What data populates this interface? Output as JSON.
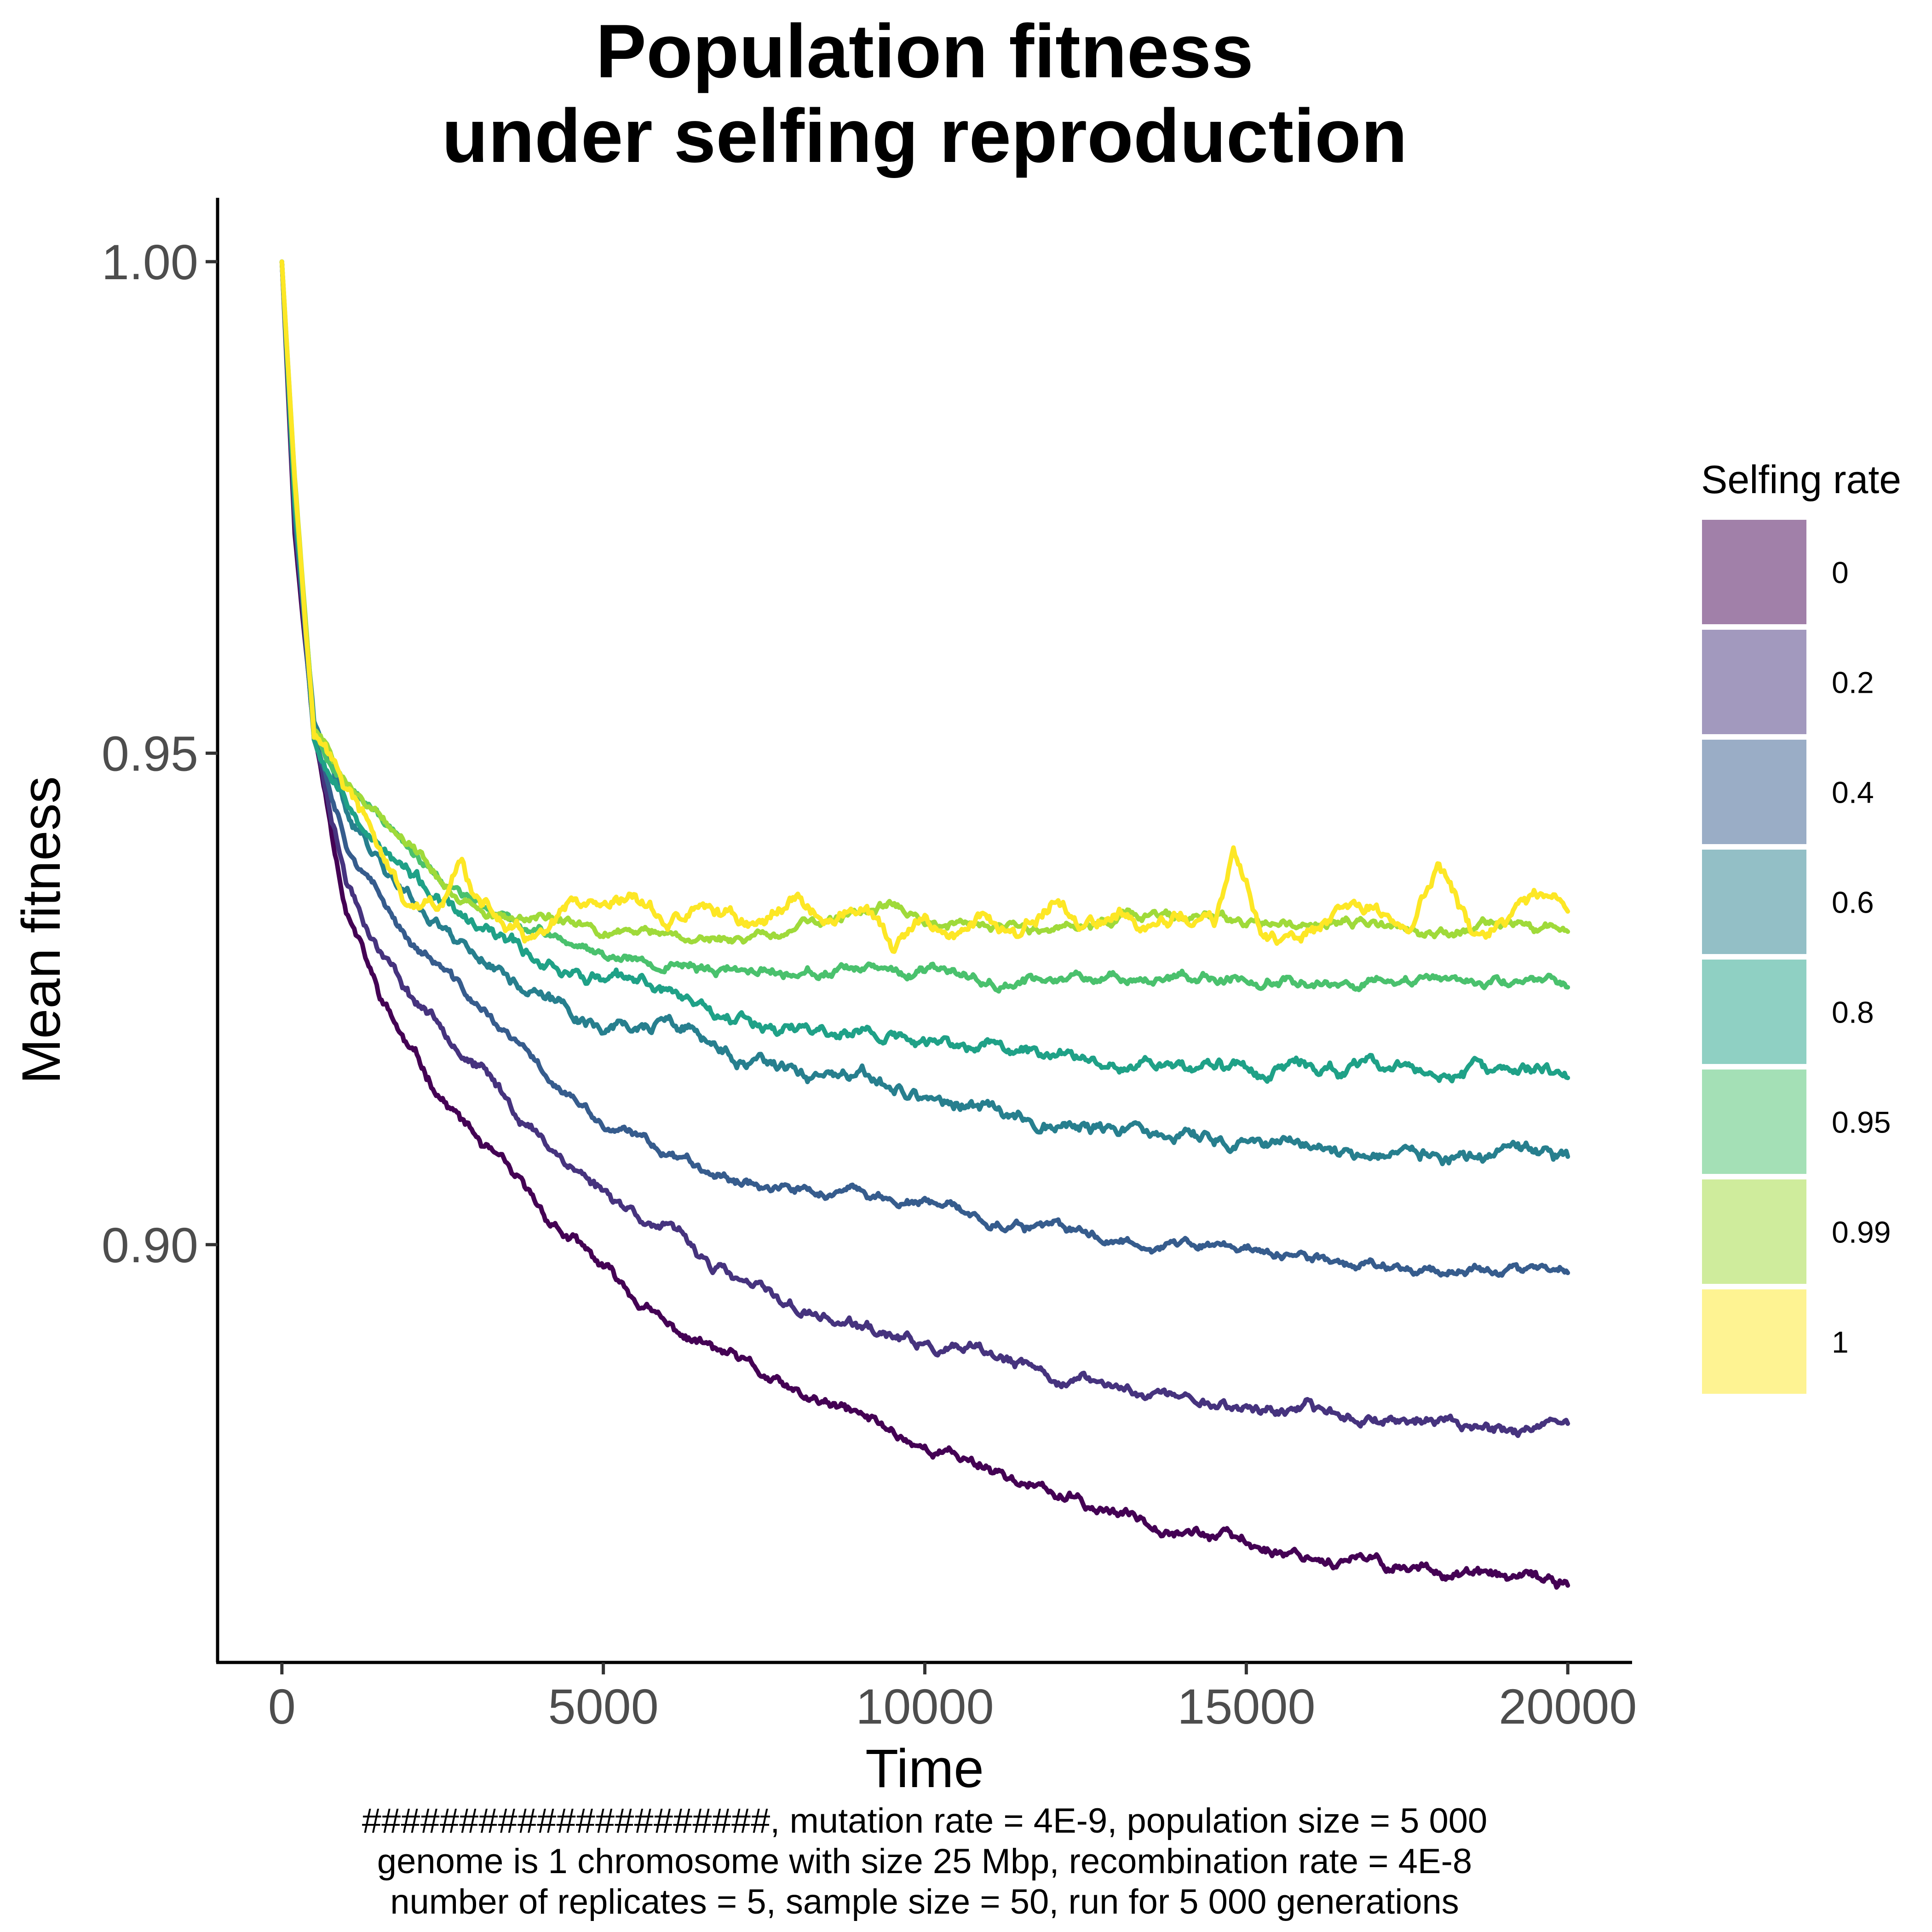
{
  "chart_data": {
    "type": "line",
    "title": [
      "Population fitness",
      "under selfing reproduction"
    ],
    "xlabel": "Time",
    "ylabel": "Mean fitness",
    "xlim": [
      -1000,
      21000
    ],
    "ylim": [
      0.8575,
      1.0065
    ],
    "x_ticks": [
      {
        "value": 0,
        "label": "0"
      },
      {
        "value": 5000,
        "label": "5000"
      },
      {
        "value": 10000,
        "label": "10000"
      },
      {
        "value": 15000,
        "label": "15000"
      },
      {
        "value": 20000,
        "label": "20000"
      }
    ],
    "y_ticks": [
      {
        "value": 0.9,
        "label": "0.90"
      },
      {
        "value": 0.95,
        "label": "0.95"
      },
      {
        "value": 1.0,
        "label": "1.00"
      }
    ],
    "grid": false,
    "legend": {
      "title": "Selfing rate",
      "position": "right",
      "entries": [
        {
          "label": "0",
          "color": "#440154"
        },
        {
          "label": "0.2",
          "color": "#46337E"
        },
        {
          "label": "0.4",
          "color": "#365C8D"
        },
        {
          "label": "0.6",
          "color": "#277F8E"
        },
        {
          "label": "0.8",
          "color": "#1FA187"
        },
        {
          "label": "0.95",
          "color": "#4AC16D"
        },
        {
          "label": "0.99",
          "color": "#9FDA3A"
        },
        {
          "label": "1",
          "color": "#FDE725"
        }
      ]
    },
    "series": [
      {
        "name": "0",
        "color": "#440154",
        "noise": 0.00035,
        "seed": 11,
        "x": [
          0,
          200,
          500,
          1000,
          1500,
          2000,
          2500,
          3000,
          4000,
          5000,
          6000,
          7000,
          8000,
          9000,
          10000,
          11000,
          12000,
          13000,
          14000,
          15000,
          16000,
          17000,
          18000,
          19000,
          20000
        ],
        "y": [
          1.0,
          0.9725,
          0.952,
          0.9345,
          0.9255,
          0.9195,
          0.915,
          0.911,
          0.9035,
          0.8975,
          0.8915,
          0.8885,
          0.8845,
          0.8825,
          0.8795,
          0.8775,
          0.8745,
          0.8725,
          0.8715,
          0.8695,
          0.8685,
          0.8675,
          0.867,
          0.866,
          0.8655
        ]
      },
      {
        "name": "0.2",
        "color": "#46337E",
        "noise": 0.00035,
        "seed": 23,
        "x": [
          0,
          200,
          500,
          1000,
          1500,
          2000,
          2500,
          3000,
          4000,
          5000,
          6000,
          7000,
          8000,
          9000,
          10000,
          11000,
          12000,
          13000,
          14000,
          15000,
          16000,
          17000,
          18000,
          19000,
          20000
        ],
        "y": [
          1.0,
          0.974,
          0.9525,
          0.9375,
          0.9305,
          0.9255,
          0.9225,
          0.9185,
          0.911,
          0.9055,
          0.9015,
          0.8965,
          0.8935,
          0.8915,
          0.8895,
          0.8885,
          0.8865,
          0.8855,
          0.8845,
          0.8835,
          0.883,
          0.8825,
          0.882,
          0.8815,
          0.881
        ]
      },
      {
        "name": "0.4",
        "color": "#365C8D",
        "noise": 0.0003,
        "seed": 37,
        "x": [
          0,
          200,
          500,
          1000,
          1500,
          2000,
          2500,
          3000,
          4000,
          5000,
          6000,
          7000,
          8000,
          9000,
          10000,
          11000,
          12000,
          13000,
          14000,
          15000,
          16000,
          17000,
          18000,
          19000,
          20000
        ],
        "y": [
          1.0,
          0.9745,
          0.9525,
          0.9415,
          0.9355,
          0.931,
          0.928,
          0.9245,
          0.918,
          0.912,
          0.9095,
          0.907,
          0.9055,
          0.905,
          0.904,
          0.9025,
          0.9015,
          0.9005,
          0.9,
          0.8995,
          0.8985,
          0.898,
          0.8975,
          0.8975,
          0.897
        ]
      },
      {
        "name": "0.6",
        "color": "#277F8E",
        "noise": 0.0004,
        "seed": 41,
        "x": [
          0,
          200,
          500,
          1000,
          1500,
          2000,
          2500,
          3000,
          4000,
          4500,
          5000,
          5500,
          6000,
          6500,
          7000,
          8000,
          9000,
          9500,
          10000,
          11000,
          12000,
          13000,
          14000,
          15000,
          16000,
          17000,
          18000,
          19000,
          20000
        ],
        "y": [
          1.0,
          0.975,
          0.9525,
          0.9445,
          0.9395,
          0.9355,
          0.9325,
          0.93,
          0.9255,
          0.9235,
          0.9225,
          0.922,
          0.9225,
          0.921,
          0.919,
          0.917,
          0.9165,
          0.916,
          0.915,
          0.9135,
          0.9125,
          0.9115,
          0.911,
          0.9105,
          0.91,
          0.9095,
          0.909,
          0.9088,
          0.9085
        ]
      },
      {
        "name": "0.8",
        "color": "#1FA187",
        "noise": 0.0004,
        "seed": 53,
        "x": [
          0,
          200,
          500,
          1000,
          1500,
          2000,
          2500,
          3000,
          4000,
          5000,
          6000,
          6500,
          7000,
          8000,
          9000,
          10000,
          11000,
          12000,
          13000,
          14000,
          15000,
          16000,
          17000,
          18000,
          19000,
          20000
        ],
        "y": [
          1.0,
          0.976,
          0.9525,
          0.9455,
          0.9405,
          0.9375,
          0.9345,
          0.932,
          0.929,
          0.927,
          0.926,
          0.9245,
          0.9235,
          0.922,
          0.9215,
          0.9205,
          0.92,
          0.9195,
          0.919,
          0.9185,
          0.918,
          0.918,
          0.9178,
          0.9175,
          0.9175,
          0.9175
        ]
      },
      {
        "name": "0.95",
        "color": "#4AC16D",
        "noise": 0.0003,
        "seed": 67,
        "x": [
          0,
          200,
          500,
          1000,
          1500,
          2000,
          2500,
          3000,
          4000,
          5000,
          6000,
          7000,
          8000,
          9000,
          10000,
          11000,
          12000,
          13000,
          14000,
          15000,
          16000,
          17000,
          18000,
          19000,
          20000
        ],
        "y": [
          1.0,
          0.977,
          0.9525,
          0.947,
          0.9435,
          0.9405,
          0.937,
          0.9345,
          0.9315,
          0.93,
          0.9285,
          0.928,
          0.928,
          0.9275,
          0.9275,
          0.927,
          0.927,
          0.9275,
          0.9275,
          0.927,
          0.927,
          0.927,
          0.9268,
          0.9265,
          0.9265
        ]
      },
      {
        "name": "0.99",
        "color": "#9FDA3A",
        "noise": 0.0003,
        "seed": 79,
        "x": [
          0,
          200,
          500,
          1000,
          1500,
          2000,
          2500,
          3000,
          3500,
          4000,
          5000,
          6000,
          7000,
          8000,
          9000,
          9500,
          10000,
          11000,
          12000,
          13000,
          14000,
          15000,
          16000,
          17000,
          18000,
          19000,
          20000
        ],
        "y": [
          1.0,
          0.978,
          0.9525,
          0.9475,
          0.944,
          0.941,
          0.937,
          0.934,
          0.9325,
          0.9335,
          0.932,
          0.9315,
          0.931,
          0.932,
          0.9335,
          0.9345,
          0.933,
          0.9325,
          0.932,
          0.933,
          0.9335,
          0.9325,
          0.932,
          0.9325,
          0.9315,
          0.9325,
          0.932
        ]
      },
      {
        "name": "1",
        "color": "#FDE725",
        "noise": 0.00045,
        "seed": 97,
        "x": [
          0,
          200,
          500,
          1000,
          1500,
          2000,
          2500,
          2800,
          3000,
          3500,
          4000,
          4500,
          5000,
          5500,
          6000,
          6500,
          7000,
          7500,
          8000,
          8500,
          9000,
          9500,
          10000,
          10500,
          11000,
          11500,
          12000,
          12500,
          13000,
          13500,
          14000,
          14500,
          14800,
          15200,
          15800,
          16500,
          17000,
          17500,
          18000,
          18500,
          19000,
          19500,
          20000
        ],
        "y": [
          1.0,
          0.978,
          0.9525,
          0.9465,
          0.9405,
          0.9335,
          0.9335,
          0.9395,
          0.9355,
          0.932,
          0.9305,
          0.934,
          0.9325,
          0.935,
          0.9325,
          0.934,
          0.9335,
          0.9325,
          0.936,
          0.9325,
          0.9345,
          0.93,
          0.9325,
          0.9315,
          0.9335,
          0.9305,
          0.935,
          0.932,
          0.934,
          0.932,
          0.9335,
          0.9325,
          0.9395,
          0.932,
          0.9305,
          0.9335,
          0.9345,
          0.932,
          0.9385,
          0.9315,
          0.9325,
          0.9345,
          0.9335
        ]
      }
    ],
    "caption": [
      "#####################, mutation rate = 4E-9, population size = 5 000",
      "genome is 1 chromosome with size 25 Mbp, recombination rate = 4E-8",
      "number of replicates = 5, sample size = 50, run for 5 000 generations"
    ]
  }
}
